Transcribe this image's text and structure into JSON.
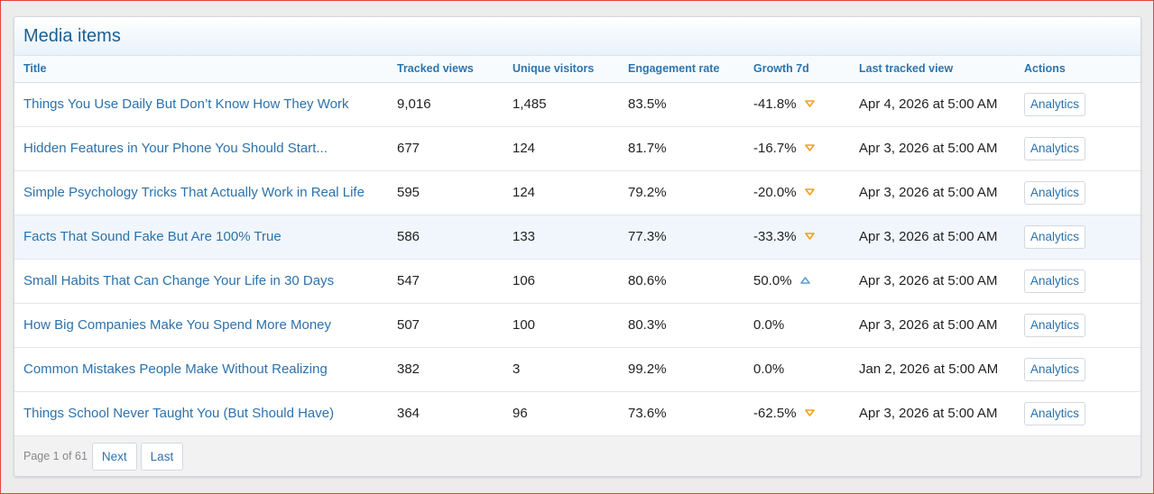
{
  "panel": {
    "title": "Media items"
  },
  "columns": {
    "title": "Title",
    "tracked_views": "Tracked views",
    "unique_visitors": "Unique visitors",
    "engagement_rate": "Engagement rate",
    "growth": "Growth 7d",
    "last_tracked": "Last tracked view",
    "actions": "Actions"
  },
  "rows": [
    {
      "title": "Things You Use Daily But Don’t Know How They Work",
      "views": "9,016",
      "visitors": "1,485",
      "engagement": "83.5%",
      "growth": "-41.8%",
      "trend": "down",
      "last": "Apr 4, 2026 at 5:00 AM",
      "action": "Analytics"
    },
    {
      "title": "Hidden Features in Your Phone You Should Start...",
      "views": "677",
      "visitors": "124",
      "engagement": "81.7%",
      "growth": "-16.7%",
      "trend": "down",
      "last": "Apr 3, 2026 at 5:00 AM",
      "action": "Analytics"
    },
    {
      "title": "Simple Psychology Tricks That Actually Work in Real Life",
      "views": "595",
      "visitors": "124",
      "engagement": "79.2%",
      "growth": "-20.0%",
      "trend": "down",
      "last": "Apr 3, 2026 at 5:00 AM",
      "action": "Analytics"
    },
    {
      "title": "Facts That Sound Fake But Are 100% True",
      "views": "586",
      "visitors": "133",
      "engagement": "77.3%",
      "growth": "-33.3%",
      "trend": "down",
      "last": "Apr 3, 2026 at 5:00 AM",
      "action": "Analytics"
    },
    {
      "title": "Small Habits That Can Change Your Life in 30 Days",
      "views": "547",
      "visitors": "106",
      "engagement": "80.6%",
      "growth": "50.0%",
      "trend": "up",
      "last": "Apr 3, 2026 at 5:00 AM",
      "action": "Analytics"
    },
    {
      "title": "How Big Companies Make You Spend More Money",
      "views": "507",
      "visitors": "100",
      "engagement": "80.3%",
      "growth": "0.0%",
      "trend": "none",
      "last": "Apr 3, 2026 at 5:00 AM",
      "action": "Analytics"
    },
    {
      "title": "Common Mistakes People Make Without Realizing",
      "views": "382",
      "visitors": "3",
      "engagement": "99.2%",
      "growth": "0.0%",
      "trend": "none",
      "last": "Jan 2, 2026 at 5:00 AM",
      "action": "Analytics"
    },
    {
      "title": "Things School Never Taught You (But Should Have)",
      "views": "364",
      "visitors": "96",
      "engagement": "73.6%",
      "growth": "-62.5%",
      "trend": "down",
      "last": "Apr 3, 2026 at 5:00 AM",
      "action": "Analytics"
    }
  ],
  "highlighted_row": 3,
  "pagination": {
    "label": "Page 1 of 61",
    "next": "Next",
    "last": "Last"
  },
  "colors": {
    "down_arrow": "#f0a020",
    "up_arrow": "#5a9fd4",
    "link": "#2c72ac"
  },
  "icons": {
    "down": "trend-down-icon",
    "up": "trend-up-icon"
  }
}
